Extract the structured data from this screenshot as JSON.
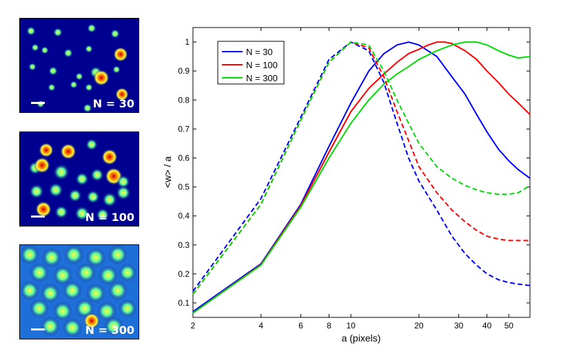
{
  "panels": [
    {
      "label": "N = 30"
    },
    {
      "label": "N = 100"
    },
    {
      "label": "N = 300"
    }
  ],
  "chart_data": {
    "type": "line",
    "xscale": "log",
    "xlim": [
      2,
      62
    ],
    "ylim": [
      0.05,
      1.05
    ],
    "xlabel": "a (pixels)",
    "ylabel": "<w> / a",
    "xticks": [
      2,
      4,
      6,
      8,
      10,
      20,
      30,
      40,
      50
    ],
    "xtick_labels": [
      "2",
      "4",
      "6",
      "8",
      "10",
      "20",
      "30",
      "40",
      "50"
    ],
    "yticks": [
      0.1,
      0.2,
      0.3,
      0.4,
      0.5,
      0.6,
      0.7,
      0.8,
      0.9,
      1
    ],
    "ytick_labels": [
      "0.1",
      "0.2",
      "0.3",
      "0.4",
      "0.5",
      "0.6",
      "0.7",
      "0.8",
      "0.9",
      "1"
    ],
    "legend_position": "top-left",
    "series": [
      {
        "name": "N = 30",
        "color": "#0000ff",
        "style": "solid",
        "x": [
          2,
          4,
          6,
          8,
          10,
          12,
          14,
          16,
          18,
          20,
          24,
          28,
          32,
          36,
          40,
          45,
          50,
          55,
          62
        ],
        "y": [
          0.07,
          0.235,
          0.44,
          0.64,
          0.79,
          0.9,
          0.96,
          0.99,
          1.0,
          0.99,
          0.95,
          0.88,
          0.82,
          0.75,
          0.69,
          0.63,
          0.59,
          0.56,
          0.53
        ]
      },
      {
        "name": "N = 100",
        "color": "#ff0000",
        "style": "solid",
        "x": [
          2,
          4,
          6,
          8,
          10,
          12,
          14,
          16,
          18,
          20,
          22,
          24,
          26,
          28,
          32,
          36,
          40,
          45,
          50,
          55,
          62
        ],
        "y": [
          0.065,
          0.232,
          0.435,
          0.62,
          0.76,
          0.84,
          0.89,
          0.93,
          0.96,
          0.975,
          0.99,
          1.0,
          1.0,
          0.995,
          0.97,
          0.94,
          0.9,
          0.86,
          0.82,
          0.79,
          0.75
        ]
      },
      {
        "name": "N = 300",
        "color": "#00dd00",
        "style": "solid",
        "x": [
          2,
          4,
          6,
          8,
          10,
          12,
          14,
          16,
          18,
          20,
          24,
          28,
          32,
          36,
          40,
          45,
          50,
          55,
          62
        ],
        "y": [
          0.065,
          0.23,
          0.43,
          0.6,
          0.72,
          0.8,
          0.855,
          0.89,
          0.915,
          0.94,
          0.97,
          0.99,
          1.0,
          1.0,
          0.99,
          0.97,
          0.955,
          0.945,
          0.95
        ]
      },
      {
        "name": "",
        "color": "#0000ff",
        "style": "dashed",
        "x": [
          2,
          4,
          6,
          8,
          10,
          12,
          14,
          16,
          18,
          20,
          24,
          28,
          32,
          36,
          40,
          45,
          50,
          55,
          62
        ],
        "y": [
          0.14,
          0.46,
          0.74,
          0.94,
          1.0,
          0.97,
          0.86,
          0.72,
          0.6,
          0.52,
          0.42,
          0.33,
          0.27,
          0.23,
          0.2,
          0.18,
          0.17,
          0.165,
          0.16
        ]
      },
      {
        "name": "",
        "color": "#ff0000",
        "style": "dashed",
        "x": [
          2,
          4,
          6,
          8,
          10,
          12,
          14,
          16,
          18,
          20,
          24,
          28,
          32,
          36,
          40,
          45,
          50,
          55,
          62
        ],
        "y": [
          0.13,
          0.44,
          0.73,
          0.93,
          1.0,
          0.98,
          0.88,
          0.76,
          0.66,
          0.57,
          0.48,
          0.42,
          0.38,
          0.35,
          0.33,
          0.32,
          0.315,
          0.315,
          0.315
        ]
      },
      {
        "name": "",
        "color": "#00dd00",
        "style": "dashed",
        "x": [
          2,
          4,
          6,
          8,
          10,
          12,
          14,
          16,
          18,
          20,
          24,
          28,
          32,
          36,
          40,
          45,
          50,
          55,
          62
        ],
        "y": [
          0.13,
          0.44,
          0.73,
          0.93,
          1.0,
          0.99,
          0.9,
          0.8,
          0.72,
          0.65,
          0.57,
          0.53,
          0.505,
          0.49,
          0.48,
          0.475,
          0.475,
          0.48,
          0.505
        ]
      }
    ]
  }
}
